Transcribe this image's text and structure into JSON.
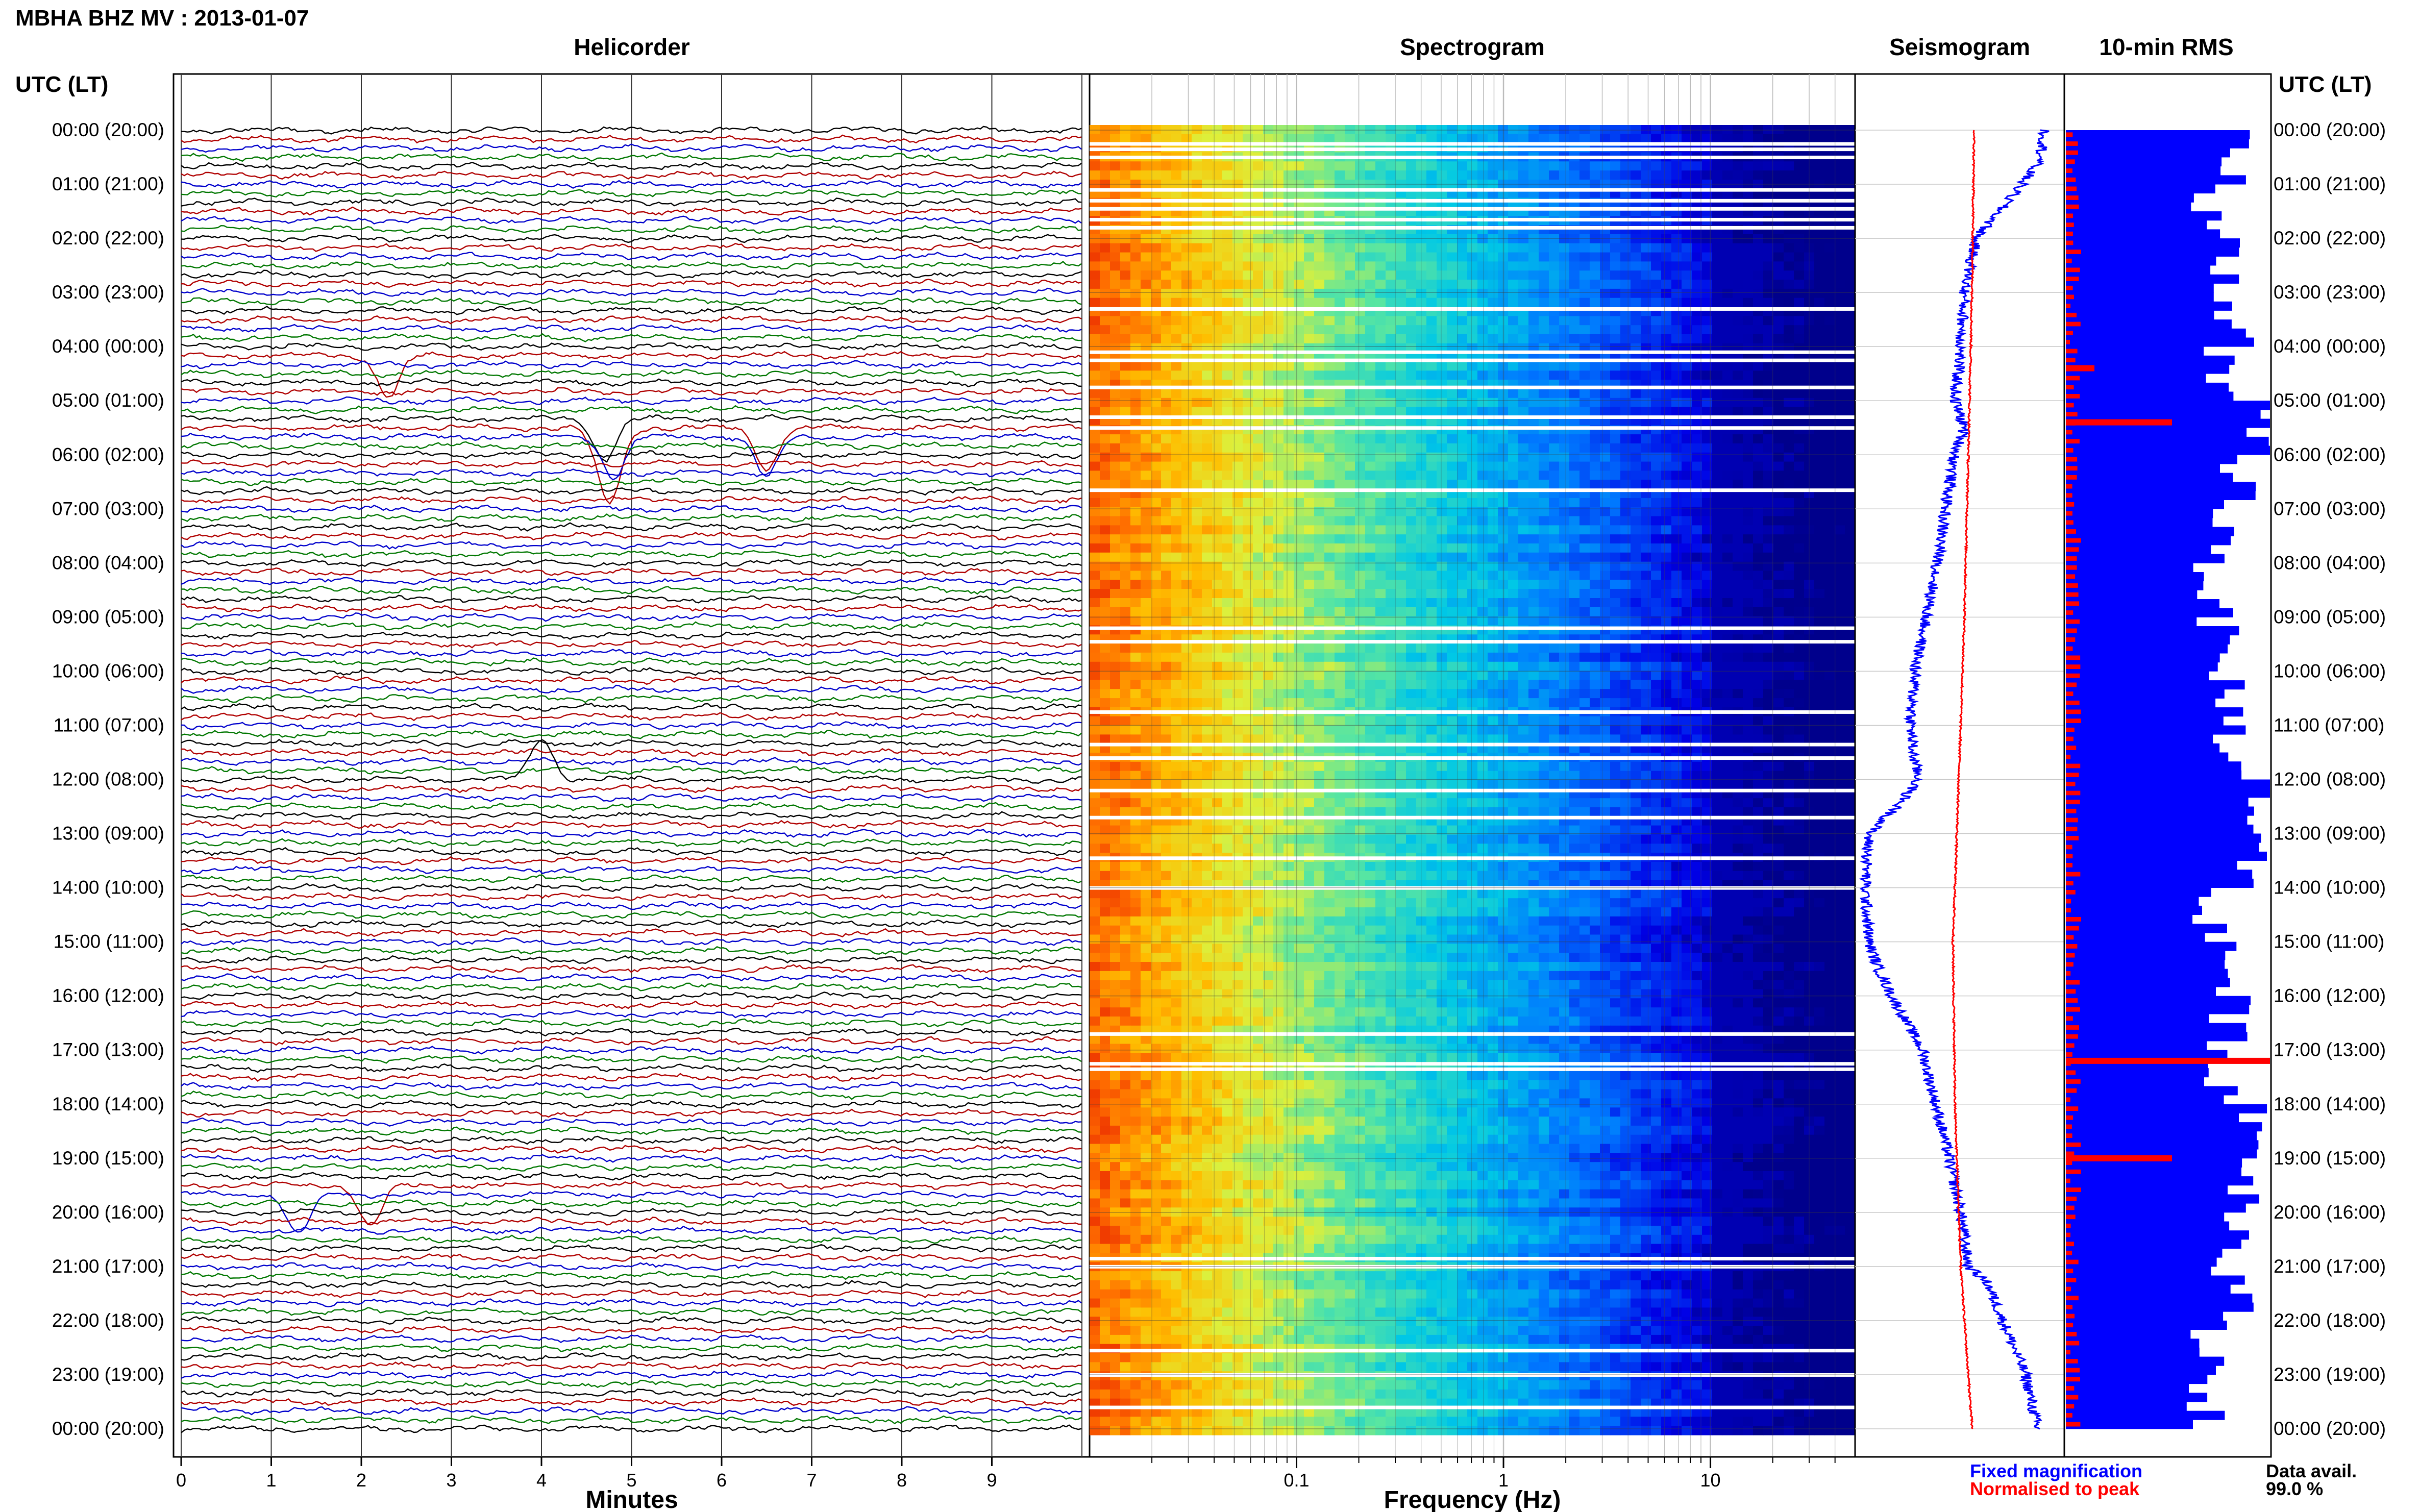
{
  "header": {
    "title": "MBHA BHZ MV : 2013-01-07",
    "time_heading": "UTC (LT)"
  },
  "panels": {
    "helicorder": "Helicorder",
    "spectrogram": "Spectrogram",
    "seismogram": "Seismogram",
    "rms": "10-min RMS"
  },
  "axes": {
    "minutes_label": "Minutes",
    "minutes_ticks": [
      "0",
      "1",
      "2",
      "3",
      "4",
      "5",
      "6",
      "7",
      "8",
      "9"
    ],
    "frequency_label": "Frequency (Hz)",
    "frequency_ticks": [
      "0.1",
      "1",
      "10"
    ]
  },
  "time_labels": [
    "00:00 (20:00)",
    "01:00 (21:00)",
    "02:00 (22:00)",
    "03:00 (23:00)",
    "04:00 (00:00)",
    "05:00 (01:00)",
    "06:00 (02:00)",
    "07:00 (03:00)",
    "08:00 (04:00)",
    "09:00 (05:00)",
    "10:00 (06:00)",
    "11:00 (07:00)",
    "12:00 (08:00)",
    "13:00 (09:00)",
    "14:00 (10:00)",
    "15:00 (11:00)",
    "16:00 (12:00)",
    "17:00 (13:00)",
    "18:00 (14:00)",
    "19:00 (15:00)",
    "20:00 (16:00)",
    "21:00 (17:00)",
    "22:00 (18:00)",
    "23:00 (19:00)",
    "00:00 (20:00)"
  ],
  "legend": {
    "fixed": "Fixed magnification",
    "normalised": "Normalised to peak"
  },
  "data_avail": {
    "label": "Data avail.",
    "value": "99.0 %"
  },
  "colors": {
    "trace_cycle": [
      "#000000",
      "#b00000",
      "#0000cc",
      "#007700"
    ],
    "fixed_magnification": "#0000ff",
    "normalised_to_peak": "#ff0000",
    "rms_bar": "#0000ff",
    "rms_peak": "#ff0000",
    "grid": "#c8c8c8"
  },
  "chart_data": [
    {
      "type": "line",
      "name": "helicorder",
      "title": "Helicorder",
      "xlabel": "Minutes",
      "xlim": [
        0,
        10
      ],
      "rows_per_hour": 6,
      "hours": 24,
      "notable_events_minutes_hours": [
        [
          2.3,
          4.2
        ],
        [
          4.8,
          5.6
        ],
        [
          6.5,
          5.6
        ],
        [
          4.0,
          12.0
        ],
        [
          2.1,
          19.5
        ],
        [
          1.3,
          19.6
        ],
        [
          4.7,
          5.4
        ]
      ]
    },
    {
      "type": "heatmap",
      "name": "spectrogram",
      "title": "Spectrogram",
      "xlabel": "Frequency (Hz)",
      "xscale": "log",
      "xlim": [
        0.01,
        50
      ],
      "ylim_hours": [
        0,
        24
      ],
      "data_gap_hours": [
        0.25,
        0.35,
        0.5,
        1.1,
        1.3,
        1.45,
        1.65,
        1.8,
        3.3,
        4.1,
        4.25,
        4.75,
        5.3,
        5.5,
        6.65,
        9.2,
        9.45,
        10.75,
        11.35,
        11.6,
        12.2,
        12.7,
        13.45,
        14.0,
        16.7,
        17.25,
        17.35,
        20.85,
        21.0,
        22.55,
        23.0,
        23.6
      ]
    },
    {
      "type": "line",
      "name": "seismogram",
      "title": "Seismogram",
      "series": [
        {
          "name": "Fixed magnification",
          "hours": [
            0,
            0.5,
            1,
            1.5,
            2,
            3,
            4,
            5,
            5.5,
            6,
            7,
            8,
            9,
            10,
            11,
            11.5,
            12,
            12.5,
            13,
            14,
            15,
            15.5,
            16,
            16.5,
            17,
            18,
            19,
            20,
            20.5,
            21,
            21.3,
            22,
            23,
            24
          ],
          "values": [
            0.92,
            0.9,
            0.8,
            0.68,
            0.56,
            0.5,
            0.48,
            0.45,
            0.5,
            0.45,
            0.4,
            0.36,
            0.3,
            0.24,
            0.22,
            0.23,
            0.26,
            0.15,
            0.0,
            -0.02,
            0.0,
            0.05,
            0.12,
            0.2,
            0.28,
            0.35,
            0.42,
            0.48,
            0.5,
            0.52,
            0.62,
            0.7,
            0.82,
            0.88
          ]
        },
        {
          "name": "Normalised to peak",
          "hours": [
            0,
            3,
            6,
            9,
            12,
            15,
            18,
            21,
            24
          ],
          "values": [
            0.55,
            0.54,
            0.52,
            0.5,
            0.47,
            0.44,
            0.45,
            0.48,
            0.54
          ]
        }
      ]
    },
    {
      "type": "bar",
      "name": "10-min RMS",
      "title": "10-min RMS",
      "bin_minutes": 10,
      "hourly_mean_fraction": [
        0.8,
        0.7,
        0.78,
        0.82,
        0.72,
        0.95,
        0.86,
        0.76,
        0.72,
        0.74,
        0.8,
        0.82,
        0.96,
        0.9,
        0.72,
        0.8,
        0.8,
        0.78,
        0.94,
        0.9,
        0.84,
        0.82,
        0.72,
        0.7
      ],
      "peaks_fraction_hours": [
        [
          4.4,
          0.14
        ],
        [
          5.4,
          0.52
        ],
        [
          17.2,
          1.0
        ],
        [
          19.0,
          0.52
        ]
      ]
    }
  ]
}
